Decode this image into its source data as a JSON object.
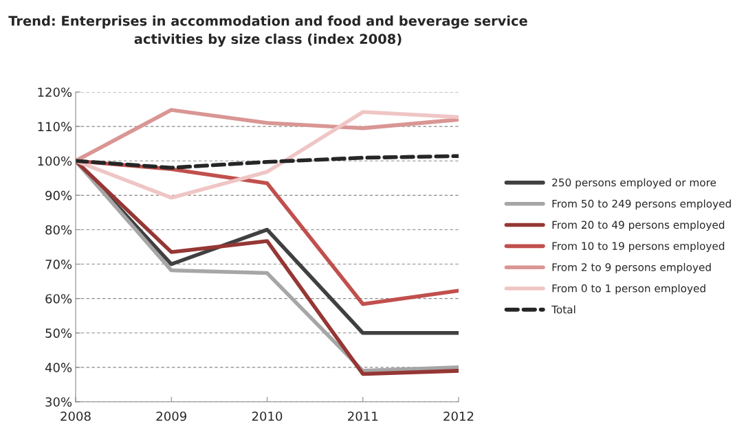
{
  "chart_data": {
    "type": "line",
    "title": "Trend: Enterprises in accommodation and food and beverage service activities by size class (index 2008)",
    "x": [
      2008,
      2009,
      2010,
      2011,
      2012
    ],
    "xlim": [
      2008,
      2012
    ],
    "xticks": [
      2008,
      2009,
      2010,
      2011,
      2012
    ],
    "ylim": [
      30,
      120
    ],
    "yticks": [
      {
        "value": 30,
        "label": "30%"
      },
      {
        "value": 40,
        "label": "40%"
      },
      {
        "value": 50,
        "label": "50%"
      },
      {
        "value": 60,
        "label": "60%"
      },
      {
        "value": 70,
        "label": "70%"
      },
      {
        "value": 80,
        "label": "80%"
      },
      {
        "value": 90,
        "label": "90%"
      },
      {
        "value": 100,
        "label": "100%"
      },
      {
        "value": 110,
        "label": "110%"
      },
      {
        "value": 120,
        "label": "120%"
      }
    ],
    "grid": "y",
    "legend": "right",
    "marker": "none",
    "series": [
      {
        "name": "250 persons employed or more",
        "color": "#404040",
        "values": [
          100,
          70,
          80,
          50,
          50
        ]
      },
      {
        "name": "From 50 to 249 persons employed",
        "color": "#a6a6a6",
        "values": [
          100,
          68.2,
          67.4,
          39,
          40
        ]
      },
      {
        "name": "From 20 to 49 persons employed",
        "color": "#953735",
        "values": [
          100,
          73.5,
          76.7,
          38.1,
          39
        ]
      },
      {
        "name": "From 10 to 19 persons employed",
        "color": "#c0504d",
        "values": [
          100,
          97.6,
          93.5,
          58.4,
          62.3
        ]
      },
      {
        "name": "From 2 to 9 persons employed",
        "color": "#d99694",
        "values": [
          100,
          114.8,
          111,
          109.5,
          112
        ]
      },
      {
        "name": "From 0 to 1 person employed",
        "color": "#efc6c5",
        "values": [
          100,
          89.3,
          96.8,
          114.2,
          112.7
        ]
      },
      {
        "name": "Total",
        "color": "#262626",
        "line_style": "dashed",
        "values": [
          100,
          98,
          99.7,
          100.9,
          101.4
        ]
      }
    ]
  }
}
